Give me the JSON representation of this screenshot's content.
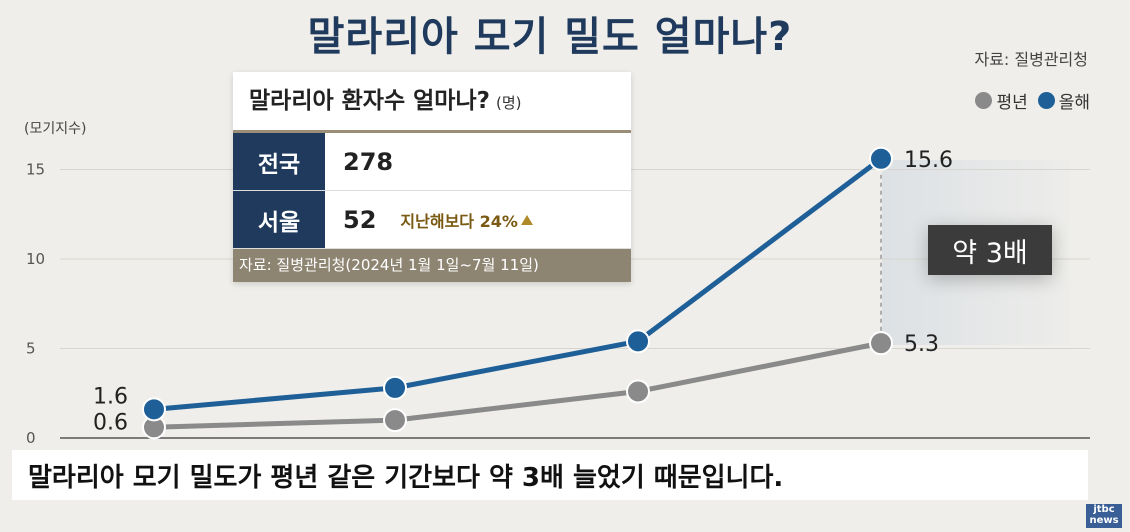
{
  "title": "말라리아 모기 밀도 얼마나?",
  "source": "자료: 질병관리청",
  "colors": {
    "series_avg": "#8a8a8a",
    "series_this": "#1f5f98",
    "navy": "#1f3a5c"
  },
  "chart_data": {
    "type": "line",
    "ylabel": "(모기지수)",
    "ylim": [
      0,
      16
    ],
    "yticks": [
      "0",
      "5",
      "10",
      "15"
    ],
    "legend_position": "top-right",
    "grid": true,
    "series": [
      {
        "name": "평년",
        "values": [
          0.6,
          1.0,
          2.6,
          5.3
        ]
      },
      {
        "name": "올해",
        "values": [
          1.6,
          2.8,
          5.4,
          15.6
        ]
      }
    ],
    "annotations": {
      "avg_start": "0.6",
      "this_start": "1.6",
      "avg_end": "5.3",
      "this_end": "15.6",
      "ratio": "약 3배"
    }
  },
  "table": {
    "title": "말라리아 환자수 얼마나?",
    "unit": "(명)",
    "rows": [
      {
        "key": "전국",
        "value": "278",
        "note": ""
      },
      {
        "key": "서울",
        "value": "52",
        "note": "지난해보다 24%"
      }
    ],
    "source": "자료: 질병관리청(2024년 1월 1일~7월 11일)"
  },
  "caption": "말라리아 모기 밀도가 평년 같은 기간보다 약 3배 늘었기 때문입니다.",
  "logo": "jtbc news"
}
